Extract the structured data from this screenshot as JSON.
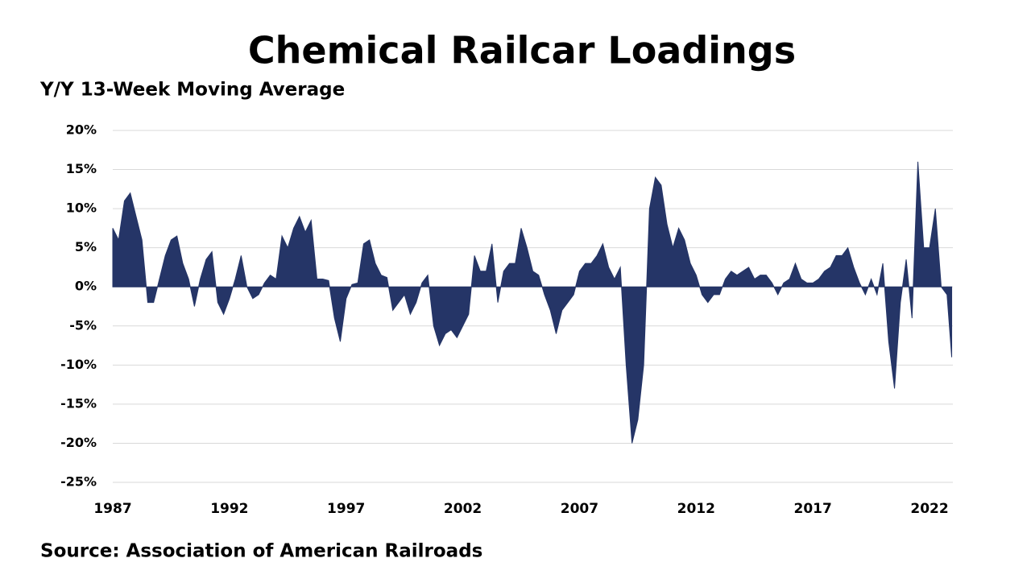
{
  "chart_data": {
    "type": "area",
    "title": "Chemical Railcar Loadings",
    "subtitle": "Y/Y 13-Week Moving Average",
    "source": "Source: Association of American Railroads",
    "color": "#253567",
    "grid": true,
    "xlim": [
      1987,
      2023
    ],
    "xticks": [
      1987,
      1992,
      1997,
      2002,
      2007,
      2012,
      2017,
      2022
    ],
    "ylim": [
      -25,
      20
    ],
    "yticks": [
      {
        "value": 20,
        "label": "20%"
      },
      {
        "value": 15,
        "label": "15%"
      },
      {
        "value": 10,
        "label": "10%"
      },
      {
        "value": 5,
        "label": "5%"
      },
      {
        "value": 0,
        "label": "0%"
      },
      {
        "value": -5,
        "label": "-5%"
      },
      {
        "value": -10,
        "label": "-10%"
      },
      {
        "value": -15,
        "label": "-15%"
      },
      {
        "value": -20,
        "label": "-20%"
      },
      {
        "value": -25,
        "label": "-25%"
      }
    ],
    "x": [
      1987,
      1987.25,
      1987.5,
      1987.75,
      1988,
      1988.25,
      1988.5,
      1988.75,
      1989,
      1989.25,
      1989.5,
      1989.75,
      1990,
      1990.25,
      1990.5,
      1990.75,
      1991,
      1991.25,
      1991.5,
      1991.75,
      1992,
      1992.25,
      1992.5,
      1992.75,
      1993,
      1993.25,
      1993.5,
      1993.75,
      1994,
      1994.25,
      1994.5,
      1994.75,
      1995,
      1995.25,
      1995.5,
      1995.75,
      1996,
      1996.25,
      1996.5,
      1996.75,
      1997,
      1997.25,
      1997.5,
      1997.75,
      1998,
      1998.25,
      1998.5,
      1998.75,
      1999,
      1999.25,
      1999.5,
      1999.75,
      2000,
      2000.25,
      2000.5,
      2000.75,
      2001,
      2001.25,
      2001.5,
      2001.75,
      2002,
      2002.25,
      2002.5,
      2002.75,
      2003,
      2003.25,
      2003.5,
      2003.75,
      2004,
      2004.25,
      2004.5,
      2004.75,
      2005,
      2005.25,
      2005.5,
      2005.75,
      2006,
      2006.25,
      2006.5,
      2006.75,
      2007,
      2007.25,
      2007.5,
      2007.75,
      2008,
      2008.25,
      2008.5,
      2008.75,
      2009,
      2009.25,
      2009.5,
      2009.75,
      2010,
      2010.25,
      2010.5,
      2010.75,
      2011,
      2011.25,
      2011.5,
      2011.75,
      2012,
      2012.25,
      2012.5,
      2012.75,
      2013,
      2013.25,
      2013.5,
      2013.75,
      2014,
      2014.25,
      2014.5,
      2014.75,
      2015,
      2015.25,
      2015.5,
      2015.75,
      2016,
      2016.25,
      2016.5,
      2016.75,
      2017,
      2017.25,
      2017.5,
      2017.75,
      2018,
      2018.25,
      2018.5,
      2018.75,
      2019,
      2019.25,
      2019.5,
      2019.75,
      2020,
      2020.25,
      2020.5,
      2020.75,
      2021,
      2021.25,
      2021.5,
      2021.75,
      2022,
      2022.25,
      2022.5,
      2022.75,
      2022.95
    ],
    "values": [
      7.5,
      6,
      11,
      12,
      9,
      6,
      -2,
      -2,
      1,
      4,
      6,
      6.5,
      3,
      1,
      -2.5,
      1,
      3.5,
      4.5,
      -2,
      -3.5,
      -1.5,
      1,
      4,
      0,
      -1.5,
      -1,
      0.5,
      1.5,
      1,
      6.5,
      5,
      7.5,
      9,
      7,
      8.5,
      1,
      1,
      0.8,
      -4,
      -7,
      -1.5,
      0.3,
      0.5,
      5.5,
      6,
      3,
      1.5,
      1.2,
      -3,
      -2,
      -1,
      -3.5,
      -2,
      0.5,
      1.5,
      -5,
      -7.5,
      -6,
      -5.5,
      -6.5,
      -5,
      -3.5,
      4,
      2,
      2,
      5.5,
      -2,
      2,
      3,
      3,
      7.5,
      5,
      2,
      1.5,
      -1,
      -3,
      -6,
      -3,
      -2,
      -1,
      2,
      3,
      3,
      4,
      5.5,
      2.5,
      1,
      2.5,
      -10,
      -20,
      -17,
      -10,
      10,
      14,
      13,
      8,
      5,
      7.5,
      6,
      3,
      1.5,
      -1,
      -2,
      -1,
      -1,
      1,
      2,
      1.5,
      2,
      2.5,
      1,
      1.5,
      1.5,
      0.5,
      -1,
      0.5,
      1,
      3,
      1,
      0.5,
      0.5,
      1,
      2,
      2.5,
      4,
      4,
      5,
      2.5,
      0.5,
      -1,
      1,
      -1,
      3,
      -7,
      -13,
      -2,
      3.5,
      -4,
      16,
      5,
      5,
      10,
      0,
      -1,
      -9
    ]
  }
}
